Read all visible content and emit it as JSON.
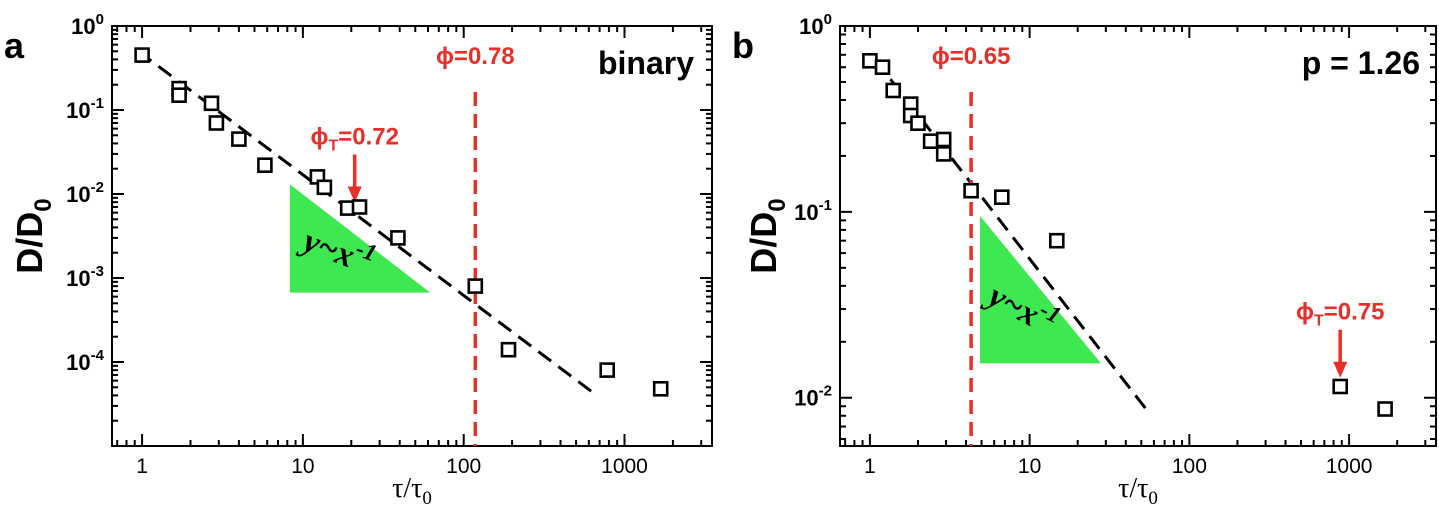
{
  "chart_data": [
    {
      "type": "scatter",
      "panel_label": "a",
      "tag": "binary",
      "xlabel": "τ/τ",
      "xlabel_sub": "0",
      "ylabel": "D/D",
      "ylabel_sub": "0",
      "x_scale": "log",
      "y_scale": "log",
      "xlim": [
        0.65,
        3500
      ],
      "ylim": [
        1e-05,
        1
      ],
      "x_ticks": [
        {
          "value": 1,
          "label": "1"
        },
        {
          "value": 10,
          "label": "10"
        },
        {
          "value": 100,
          "label": "100"
        },
        {
          "value": 1000,
          "label": "1000"
        }
      ],
      "y_ticks": [
        {
          "value": 1,
          "base": "10",
          "exp": "0"
        },
        {
          "value": 0.1,
          "base": "10",
          "exp": "-1"
        },
        {
          "value": 0.01,
          "base": "10",
          "exp": "-2"
        },
        {
          "value": 0.001,
          "base": "10",
          "exp": "-3"
        },
        {
          "value": 0.0001,
          "base": "10",
          "exp": "-4"
        }
      ],
      "points": [
        {
          "x": 1.0,
          "y": 0.45
        },
        {
          "x": 1.7,
          "y": 0.18
        },
        {
          "x": 1.7,
          "y": 0.15
        },
        {
          "x": 2.7,
          "y": 0.12
        },
        {
          "x": 2.9,
          "y": 0.07
        },
        {
          "x": 4.0,
          "y": 0.045
        },
        {
          "x": 5.8,
          "y": 0.022
        },
        {
          "x": 12.3,
          "y": 0.016
        },
        {
          "x": 13.6,
          "y": 0.012
        },
        {
          "x": 19.0,
          "y": 0.0068
        },
        {
          "x": 22.5,
          "y": 0.007
        },
        {
          "x": 39.0,
          "y": 0.003
        },
        {
          "x": 118.0,
          "y": 0.0008
        },
        {
          "x": 190.0,
          "y": 0.00014
        },
        {
          "x": 780.0,
          "y": 8e-05
        },
        {
          "x": 1680.0,
          "y": 4.8e-05
        }
      ],
      "fit_line": {
        "x": [
          0.95,
          640
        ],
        "y": [
          0.5,
          4.3e-05
        ],
        "style": "dashed"
      },
      "vline": {
        "x": 118,
        "label": "ϕ=0.78",
        "color": "#e8302a"
      },
      "arrow_annotation": {
        "x": 21,
        "y": 0.0075,
        "text": "ϕ",
        "sub": "T",
        "rest": "=0.72",
        "color": "#e8302a"
      },
      "triangle": {
        "x": [
          8.3,
          8.3,
          62
        ],
        "y": [
          0.013,
          0.00067,
          0.00067
        ],
        "color": "#3de850",
        "label": "y~x",
        "label_exp": "-1"
      }
    },
    {
      "type": "scatter",
      "panel_label": "b",
      "tag": "p = 1.26",
      "xlabel": "τ/τ",
      "xlabel_sub": "0",
      "ylabel": "D/D",
      "ylabel_sub": "0",
      "x_scale": "log",
      "y_scale": "log",
      "xlim": [
        0.65,
        3500
      ],
      "ylim": [
        0.0055,
        1
      ],
      "x_ticks": [
        {
          "value": 1,
          "label": "1"
        },
        {
          "value": 10,
          "label": "10"
        },
        {
          "value": 100,
          "label": "100"
        },
        {
          "value": 1000,
          "label": "1000"
        }
      ],
      "y_ticks": [
        {
          "value": 1,
          "base": "10",
          "exp": "0"
        },
        {
          "value": 0.1,
          "base": "10",
          "exp": "-1"
        },
        {
          "value": 0.01,
          "base": "10",
          "exp": "-2"
        }
      ],
      "points": [
        {
          "x": 1.0,
          "y": 0.65
        },
        {
          "x": 1.2,
          "y": 0.6
        },
        {
          "x": 1.4,
          "y": 0.45
        },
        {
          "x": 1.8,
          "y": 0.38
        },
        {
          "x": 1.8,
          "y": 0.33
        },
        {
          "x": 2.0,
          "y": 0.3
        },
        {
          "x": 2.4,
          "y": 0.24
        },
        {
          "x": 2.9,
          "y": 0.245
        },
        {
          "x": 2.9,
          "y": 0.205
        },
        {
          "x": 4.3,
          "y": 0.13
        },
        {
          "x": 6.7,
          "y": 0.12
        },
        {
          "x": 14.8,
          "y": 0.07
        },
        {
          "x": 880.0,
          "y": 0.0115
        },
        {
          "x": 1680.0,
          "y": 0.0087
        }
      ],
      "fit_line": {
        "x": [
          1.08,
          53
        ],
        "y": [
          0.66,
          0.0088
        ],
        "style": "dashed"
      },
      "vline": {
        "x": 4.3,
        "label": "ϕ=0.65",
        "color": "#e8302a"
      },
      "arrow_annotation": {
        "x": 880,
        "y": 0.0125,
        "text": "ϕ",
        "sub": "T",
        "rest": "=0.75",
        "color": "#e8302a"
      },
      "triangle": {
        "x": [
          4.9,
          4.9,
          28
        ],
        "y": [
          0.095,
          0.0153,
          0.0153
        ],
        "color": "#3de850",
        "label": "y~x",
        "label_exp": "-1"
      }
    }
  ]
}
